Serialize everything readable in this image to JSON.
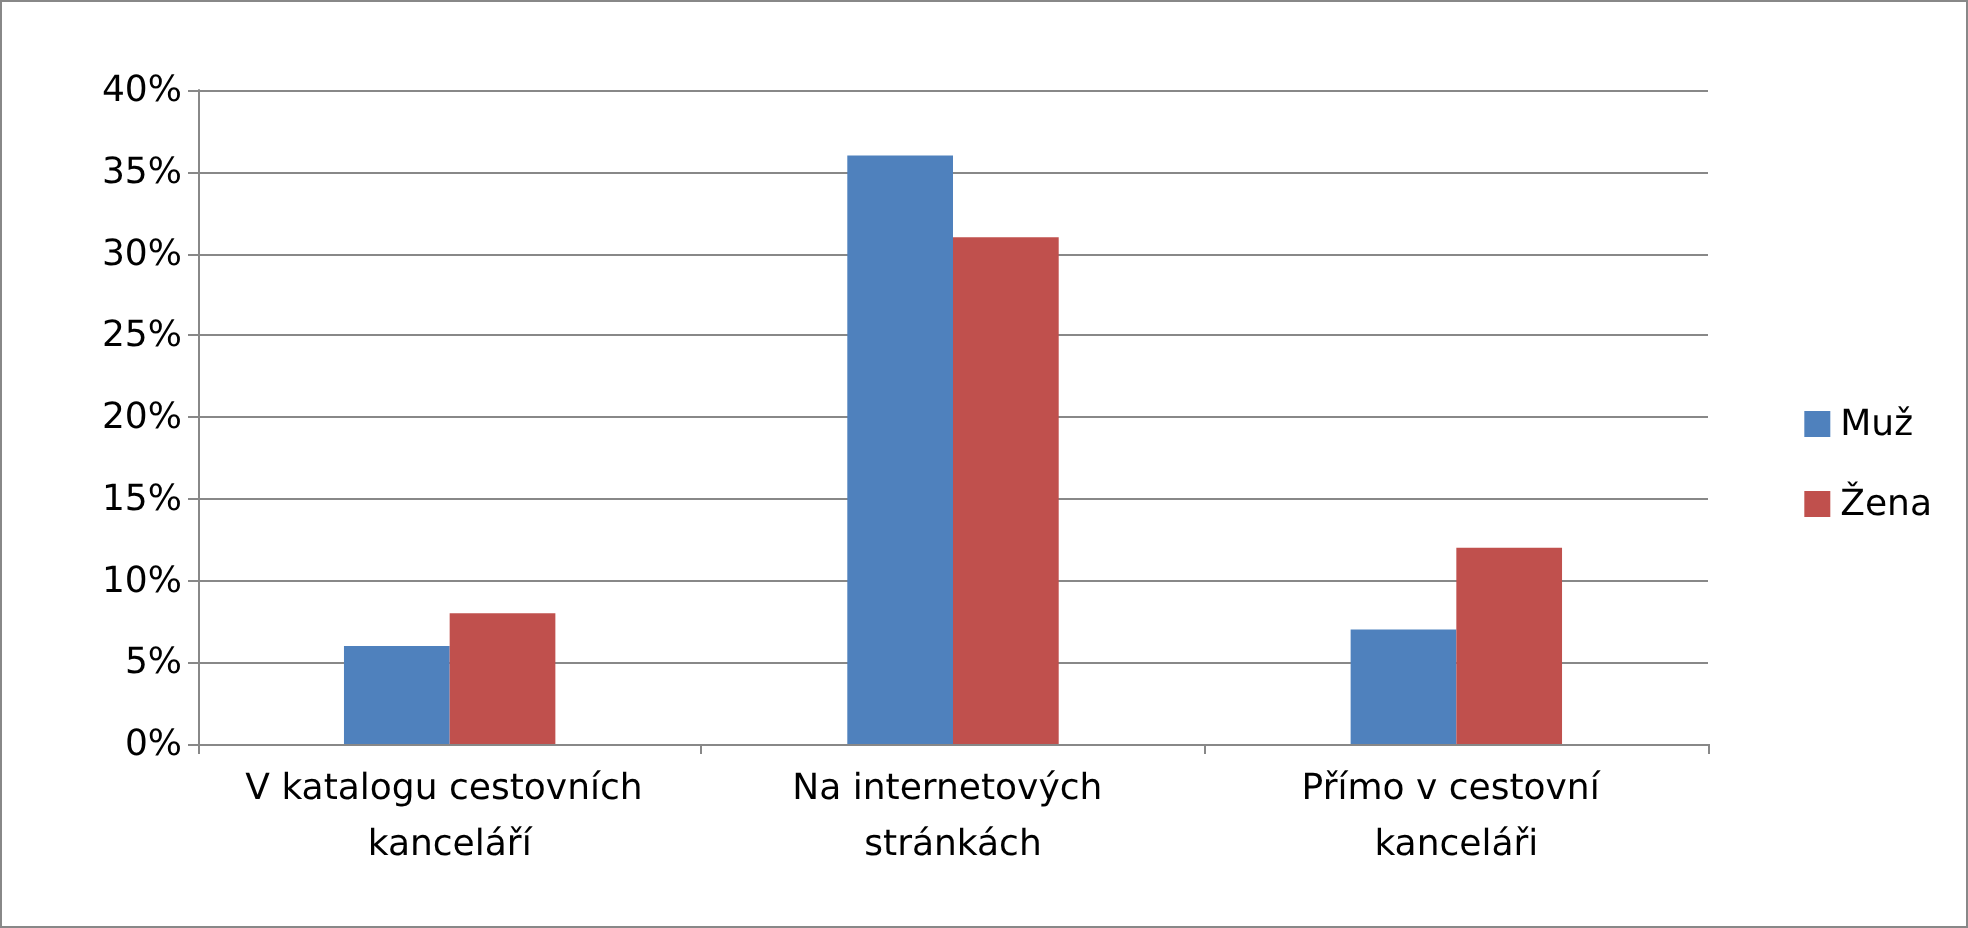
{
  "chart_data": {
    "type": "bar",
    "categories": [
      "V katalogu cestovních kanceláří",
      "Na internetových stránkách",
      "Přímo v cestovní kanceláři"
    ],
    "series": [
      {
        "name": "Muž",
        "color": "#4f81bd",
        "values": [
          6,
          36,
          7
        ]
      },
      {
        "name": "Žena",
        "color": "#c0504d",
        "values": [
          8,
          31,
          12
        ]
      }
    ],
    "ylim": [
      0,
      40
    ],
    "yticks": [
      {
        "value": 0,
        "label": "0%"
      },
      {
        "value": 5,
        "label": "5%"
      },
      {
        "value": 10,
        "label": "10%"
      },
      {
        "value": 15,
        "label": "15%"
      },
      {
        "value": 20,
        "label": "20%"
      },
      {
        "value": 25,
        "label": "25%"
      },
      {
        "value": 30,
        "label": "30%"
      },
      {
        "value": 35,
        "label": "35%"
      },
      {
        "value": 40,
        "label": "40%"
      }
    ],
    "grid": "y",
    "legend": "right"
  }
}
